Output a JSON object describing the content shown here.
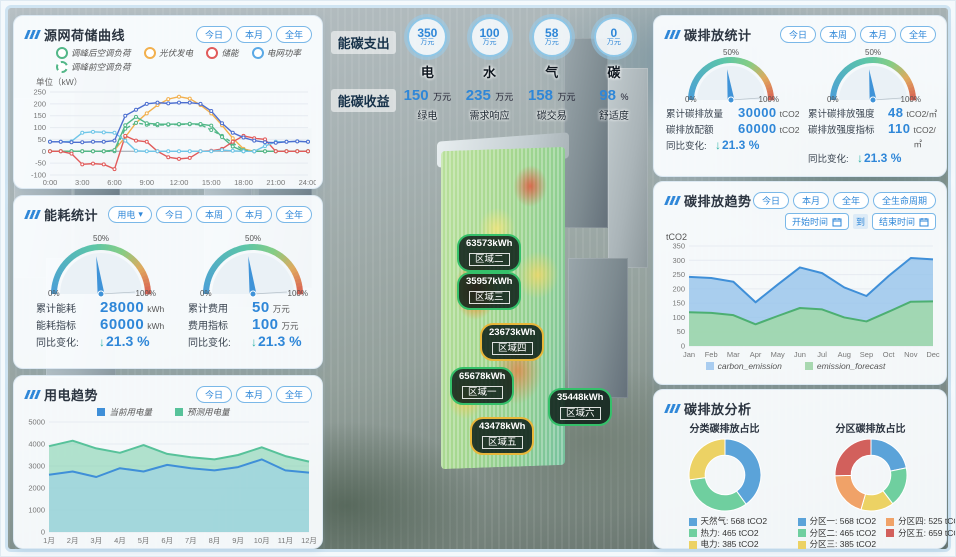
{
  "gauge_scale": {
    "p0": "0%",
    "p50": "50%",
    "p100": "100%"
  },
  "panels": {
    "grid_curve": {
      "title": "源网荷储曲线",
      "buttons": [
        "今日",
        "本月",
        "全年"
      ],
      "unit": "单位（kW）",
      "legend": [
        {
          "label": "调峰后空调负荷",
          "color": "#52b788"
        },
        {
          "label": "光伏发电",
          "color": "#f2b04e"
        },
        {
          "label": "储能",
          "color": "#e15b5b"
        },
        {
          "label": "电网功率",
          "color": "#5aa9e6"
        },
        {
          "label": "调峰前空调负荷",
          "color": "#52b788"
        }
      ]
    },
    "energy_stats": {
      "title": "能耗统计",
      "dropdown": "用电",
      "dropdown_caret": "▾",
      "buttons": [
        "今日",
        "本周",
        "本月",
        "全年"
      ],
      "gauges": [
        {
          "needle_pct": 46,
          "rows": [
            {
              "k": "累计能耗",
              "v": "28000",
              "u": "kWh"
            },
            {
              "k": "能耗指标",
              "v": "60000",
              "u": "kWh"
            }
          ],
          "yoy_k": "同比变化:",
          "yoy_arrow": "↓",
          "yoy_v": "21.3 %"
        },
        {
          "needle_pct": 46,
          "rows": [
            {
              "k": "累计费用",
              "v": "50",
              "u": "万元"
            },
            {
              "k": "费用指标",
              "v": "100",
              "u": "万元"
            }
          ],
          "yoy_k": "同比变化:",
          "yoy_arrow": "↓",
          "yoy_v": "21.3 %"
        }
      ]
    },
    "power_trend": {
      "title": "用电趋势",
      "buttons": [
        "今日",
        "本月",
        "全年"
      ],
      "legend": [
        {
          "label": "当前用电量",
          "color": "#3f8fd8"
        },
        {
          "label": "预测用电量",
          "color": "#57c29a"
        }
      ]
    },
    "carbon_stats": {
      "title": "碳排放统计",
      "buttons": [
        "今日",
        "本周",
        "本月",
        "全年"
      ],
      "gauges": [
        {
          "needle_pct": 46,
          "rows": [
            {
              "k": "累计碳排放量",
              "v": "30000",
              "u": "tCO2"
            },
            {
              "k": "碳排放配额",
              "v": "60000",
              "u": "tCO2"
            }
          ],
          "yoy_k": "同比变化:",
          "yoy_arrow": "↓",
          "yoy_v": "21.3 %"
        },
        {
          "needle_pct": 46,
          "rows": [
            {
              "k": "累计碳排放强度",
              "v": "48",
              "u": "tCO2/㎡"
            },
            {
              "k": "碳排放强度指标",
              "v": "110",
              "u": "tCO2/㎡"
            }
          ],
          "yoy_k": "同比变化:",
          "yoy_arrow": "↓",
          "yoy_v": "21.3 %"
        }
      ]
    },
    "carbon_trend": {
      "title": "碳排放趋势",
      "buttons": [
        "今日",
        "本月",
        "全年",
        "全生命周期"
      ],
      "start_label": "开始时间",
      "to_label": "到",
      "end_label": "结束时间",
      "ylabel": "tCO2",
      "legend": [
        {
          "label": "carbon_emission",
          "color": "#a9cdf0"
        },
        {
          "label": "emission_forecast",
          "color": "#a8d8b0"
        }
      ]
    },
    "carbon_analysis": {
      "title": "碳排放分析",
      "left_title": "分类碳排放占比",
      "right_title": "分区碳排放占比"
    }
  },
  "kpi": {
    "expense_label": "能碳支出",
    "expense": [
      {
        "value": "350",
        "unit": "万元",
        "name": "电"
      },
      {
        "value": "100",
        "unit": "万元",
        "name": "水"
      },
      {
        "value": "58",
        "unit": "万元",
        "name": "气"
      },
      {
        "value": "0",
        "unit": "万元",
        "name": "碳"
      }
    ],
    "income_label": "能碳收益",
    "income": [
      {
        "value": "150",
        "unit": "万元",
        "name": "绿电"
      },
      {
        "value": "235",
        "unit": "万元",
        "name": "需求响应"
      },
      {
        "value": "158",
        "unit": "万元",
        "name": "碳交易"
      },
      {
        "value": "98",
        "unit": "%",
        "name": "舒适度"
      }
    ]
  },
  "building_labels": [
    {
      "value": "63573kWh",
      "name": "区域二",
      "accent": "#35c06a"
    },
    {
      "value": "35957kWh",
      "name": "区域三",
      "accent": "#35c06a"
    },
    {
      "value": "23673kWh",
      "name": "区域四",
      "accent": "#e8b73a"
    },
    {
      "value": "65678kWh",
      "name": "区域一",
      "accent": "#35c06a"
    },
    {
      "value": "35448kWh",
      "name": "区域六",
      "accent": "#35c06a"
    },
    {
      "value": "43478kWh",
      "name": "区域五",
      "accent": "#e8b73a"
    }
  ],
  "chart_data": [
    {
      "id": "grid_curve",
      "type": "line",
      "title": "源网荷储曲线",
      "ylabel": "kW",
      "x_tick_labels": [
        "0:00",
        "3:00",
        "6:00",
        "9:00",
        "12:00",
        "15:00",
        "18:00",
        "21:00",
        "24:00"
      ],
      "x_hours": [
        0,
        1,
        2,
        3,
        4,
        5,
        6,
        7,
        8,
        9,
        10,
        11,
        12,
        13,
        14,
        15,
        16,
        17,
        18,
        19,
        20,
        21,
        22,
        23,
        24
      ],
      "ylim": [
        -100,
        250
      ],
      "yticks": [
        -100,
        -50,
        0,
        50,
        100,
        150,
        200,
        250
      ],
      "series": [
        {
          "name": "光伏发电",
          "color": "#f2b04e",
          "values": [
            0,
            0,
            0,
            0,
            0,
            0,
            5,
            60,
            120,
            160,
            195,
            220,
            230,
            222,
            195,
            160,
            110,
            55,
            10,
            0,
            0,
            0,
            0,
            0,
            0
          ]
        },
        {
          "name": "调峰前空调负荷",
          "color": "#52b788",
          "dash": true,
          "values": [
            0,
            0,
            0,
            0,
            0,
            0,
            0,
            95,
            120,
            112,
            110,
            112,
            113,
            114,
            112,
            90,
            65,
            35,
            5,
            0,
            0,
            0,
            0,
            0,
            0
          ]
        },
        {
          "name": "调峰后空调负荷",
          "color": "#52b788",
          "values": [
            0,
            0,
            0,
            0,
            0,
            0,
            5,
            110,
            145,
            118,
            115,
            114,
            115,
            116,
            115,
            108,
            60,
            20,
            0,
            0,
            0,
            0,
            0,
            0,
            0
          ]
        },
        {
          "name": "储能",
          "color": "#e15b5b",
          "values": [
            0,
            0,
            -10,
            -55,
            -52,
            -55,
            -75,
            65,
            45,
            40,
            0,
            -25,
            -32,
            -28,
            0,
            2,
            10,
            40,
            65,
            55,
            50,
            0,
            0,
            0,
            0
          ]
        },
        {
          "name": "",
          "color": "#6fc6e8",
          "values": [
            40,
            40,
            42,
            78,
            82,
            80,
            78,
            45,
            2,
            0,
            0,
            0,
            0,
            0,
            0,
            0,
            5,
            2,
            0,
            0,
            22,
            40,
            40,
            42,
            40
          ]
        },
        {
          "name": "电网功率",
          "color": "#4d6fd0",
          "values": [
            40,
            40,
            38,
            38,
            40,
            40,
            45,
            150,
            175,
            200,
            205,
            202,
            205,
            205,
            200,
            170,
            118,
            78,
            58,
            45,
            38,
            36,
            40,
            42,
            40
          ]
        }
      ]
    },
    {
      "id": "power_trend",
      "type": "area",
      "categories": [
        "1月",
        "2月",
        "3月",
        "4月",
        "5月",
        "6月",
        "7月",
        "8月",
        "9月",
        "10月",
        "11月",
        "12月"
      ],
      "ylim": [
        0,
        5000
      ],
      "yticks": [
        0,
        1000,
        2000,
        3000,
        4000,
        5000
      ],
      "series": [
        {
          "name": "预测用电量",
          "color": "#57c29a",
          "fill": "rgba(130,210,175,0.6)",
          "values": [
            3900,
            4150,
            3800,
            3600,
            3950,
            3550,
            3400,
            3300,
            3500,
            3850,
            3450,
            3200
          ]
        },
        {
          "name": "当前用电量",
          "color": "#3f8fd8",
          "fill": "rgba(150,205,235,0.5)",
          "values": [
            2600,
            2750,
            2500,
            2900,
            2750,
            3050,
            2900,
            2800,
            2950,
            3300,
            2800,
            2700
          ]
        }
      ]
    },
    {
      "id": "carbon_trend",
      "type": "area",
      "ylabel": "tCO2",
      "categories": [
        "Jan",
        "Feb",
        "Mar",
        "Apr",
        "May",
        "Jun",
        "Jul",
        "Aug",
        "Sep",
        "Oct",
        "Nov",
        "Dec"
      ],
      "ylim": [
        0,
        350
      ],
      "yticks": [
        0,
        50,
        100,
        150,
        200,
        250,
        300,
        350
      ],
      "series": [
        {
          "name": "carbon_emission",
          "color": "#3f8fd8",
          "fill": "rgba(150,195,235,0.8)",
          "values": [
            242,
            238,
            225,
            153,
            215,
            275,
            255,
            205,
            175,
            245,
            308,
            303
          ]
        },
        {
          "name": "emission_forecast",
          "color": "#4caf72",
          "fill": "rgba(160,215,175,0.95)",
          "values": [
            118,
            116,
            108,
            76,
            105,
            133,
            128,
            100,
            86,
            120,
            155,
            156
          ]
        }
      ]
    },
    {
      "id": "donut_category",
      "type": "pie",
      "title": "分类碳排放占比",
      "slices": [
        {
          "label": "天然气",
          "value": 568,
          "unit": "tCO2",
          "color": "#5ba3d9"
        },
        {
          "label": "热力",
          "value": 465,
          "unit": "tCO2",
          "color": "#6fcf9f"
        },
        {
          "label": "电力",
          "value": 385,
          "unit": "tCO2",
          "color": "#ecd264"
        }
      ]
    },
    {
      "id": "donut_zone",
      "type": "pie",
      "title": "分区碳排放占比",
      "slices": [
        {
          "label": "分区一",
          "value": 568,
          "unit": "tCO2",
          "color": "#5ba3d9"
        },
        {
          "label": "分区二",
          "value": 465,
          "unit": "tCO2",
          "color": "#6fcf9f"
        },
        {
          "label": "分区三",
          "value": 385,
          "unit": "tCO2",
          "color": "#ecd264"
        },
        {
          "label": "分区四",
          "value": 525,
          "unit": "tCO2",
          "color": "#f0a268"
        },
        {
          "label": "分区五",
          "value": 659,
          "unit": "tCO2",
          "color": "#d2605c"
        }
      ]
    }
  ]
}
